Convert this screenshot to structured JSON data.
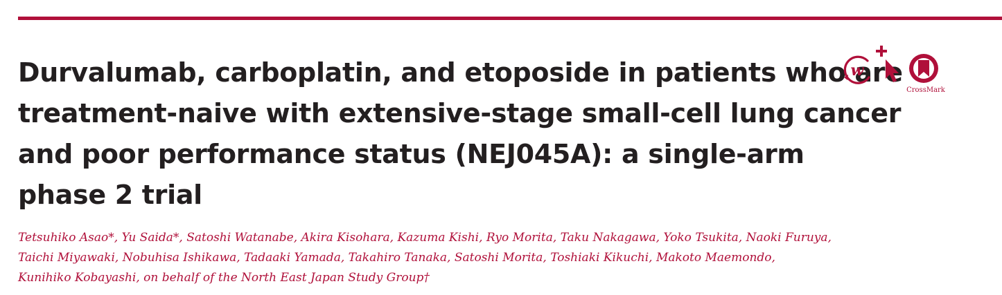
{
  "colors": {
    "accent": "#b0103a",
    "title_text": "#231f20"
  },
  "title_lines": [
    "Durvalumab, carboplatin, and etoposide in patients who are",
    "treatment-naive with extensive-stage small-cell lung cancer",
    "and poor performance status (NEJ045A): a single-arm",
    "phase 2 trial"
  ],
  "authors_lines": [
    "Tetsuhiko Asao*, Yu Saida*, Satoshi Watanabe, Akira Kisohara, Kazuma Kishi, Ryo Morita, Taku Nakagawa, Yoko Tsukita, Naoki Furuya,",
    "Taichi Miyawaki, Nobuhisa Ishikawa, Tadaaki Yamada, Takahiro Tanaka, Satoshi Morita, Toshiaki Kikuchi, Makoto Maemondo,",
    "Kunihiko Kobayashi, on behalf of the North East Japan Study Group†"
  ],
  "icons": [
    {
      "name": "w-circle-icon"
    },
    {
      "name": "pointer-plus-icon"
    },
    {
      "name": "crossmark-icon",
      "label": "CrossMark"
    }
  ]
}
